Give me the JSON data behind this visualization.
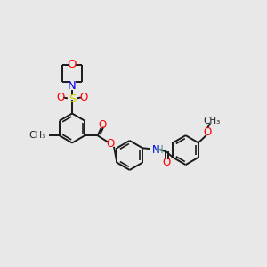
{
  "bg": "#e8e8e8",
  "bond_color": "#1a1a1a",
  "bw": 1.4,
  "dbw": 1.2,
  "atom_colors": {
    "O": "#ff0000",
    "N": "#0000ee",
    "S": "#cccc00",
    "H": "#4a9090",
    "C": "#1a1a1a"
  },
  "fs": 8.5,
  "r": 0.55
}
